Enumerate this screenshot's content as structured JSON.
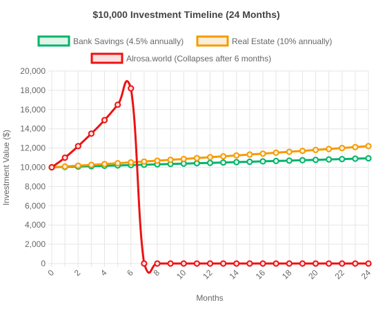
{
  "chart_data": {
    "type": "line",
    "title": "$10,000 Investment Timeline (24 Months)",
    "xlabel": "Months",
    "ylabel": "Investment Value ($)",
    "xlim": [
      0,
      24
    ],
    "ylim": [
      0,
      20000
    ],
    "x_ticks": [
      "0",
      "2",
      "4",
      "6",
      "8",
      "10",
      "12",
      "14",
      "16",
      "18",
      "20",
      "22",
      "24"
    ],
    "y_ticks": [
      "0",
      "2,000",
      "4,000",
      "6,000",
      "8,000",
      "10,000",
      "12,000",
      "14,000",
      "16,000",
      "18,000",
      "20,000"
    ],
    "grid": true,
    "legend_position": "top",
    "x": [
      0,
      1,
      2,
      3,
      4,
      5,
      6,
      7,
      8,
      9,
      10,
      11,
      12,
      13,
      14,
      15,
      16,
      17,
      18,
      19,
      20,
      21,
      22,
      23,
      24
    ],
    "series": [
      {
        "name": "Bank Savings (4.5% annually)",
        "color": "#00b36b",
        "fill": "#dff5ea",
        "smooth": false,
        "values": [
          10000,
          10037,
          10075,
          10112,
          10150,
          10188,
          10226,
          10264,
          10302,
          10341,
          10379,
          10418,
          10457,
          10496,
          10535,
          10574,
          10614,
          10654,
          10693,
          10733,
          10774,
          10814,
          10854,
          10895,
          10936
        ]
      },
      {
        "name": "Real Estate (10% annually)",
        "color": "#f59b00",
        "fill": "#fdeed9",
        "smooth": false,
        "values": [
          10000,
          10083,
          10167,
          10252,
          10337,
          10423,
          10510,
          10597,
          10686,
          10775,
          10864,
          10955,
          11046,
          11138,
          11231,
          11324,
          11418,
          11513,
          11609,
          11706,
          11803,
          11901,
          12000,
          12100,
          12201
        ]
      },
      {
        "name": "Alrosa.world (Collapses after 6 months)",
        "color": "#ee1111",
        "fill": "#fde0e0",
        "smooth": true,
        "values": [
          10000,
          11000,
          12200,
          13500,
          14900,
          16500,
          18200,
          0,
          0,
          0,
          0,
          0,
          0,
          0,
          0,
          0,
          0,
          0,
          0,
          0,
          0,
          0,
          0,
          0,
          0
        ]
      }
    ]
  }
}
